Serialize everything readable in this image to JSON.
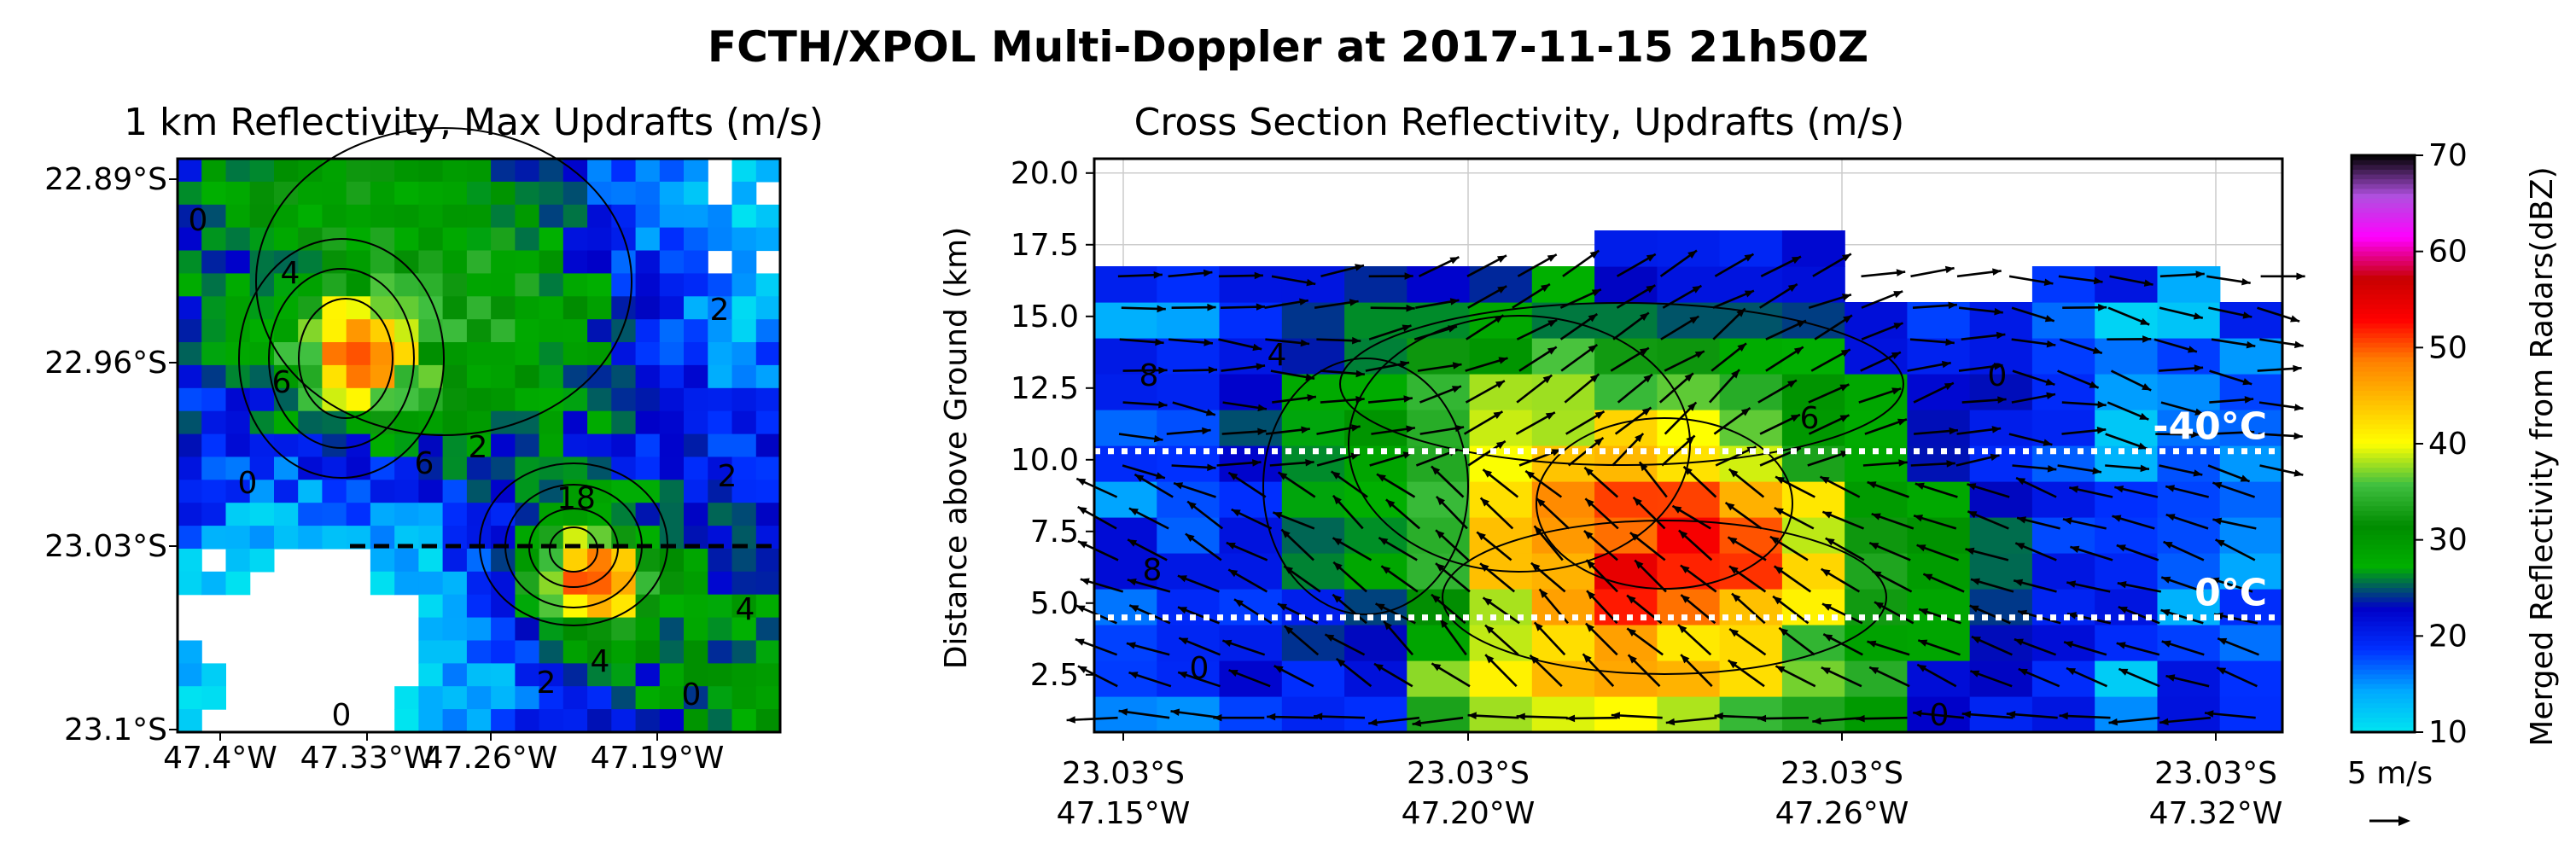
{
  "figure": {
    "title": "FCTH/XPOL Multi-Doppler at 2017-11-15 21h50Z"
  },
  "chart_data": [
    {
      "type": "heatmap",
      "title": "1 km Reflectivity, Max Updrafts (m/s)",
      "xlabel": "",
      "ylabel": "",
      "x_ticks": [
        "47.4°W",
        "47.33°W",
        "47.26°W",
        "47.19°W"
      ],
      "y_ticks": [
        "22.89°S",
        "22.96°S",
        "23.03°S",
        "23.1°S"
      ],
      "xlim": [
        -47.4,
        -47.15
      ],
      "ylim": [
        -23.1,
        -22.88
      ],
      "cross_section_lat": -23.03,
      "contour_labels": [
        "0",
        "4",
        "6",
        "0",
        "2",
        "2",
        "6",
        "2",
        "18",
        "4",
        "0",
        "4",
        "0",
        "2"
      ],
      "grid": true
    },
    {
      "type": "heatmap",
      "title": "Cross Section Reflectivity, Updrafts (m/s)",
      "xlabel": "",
      "ylabel": "Distance above Ground (km)",
      "y_ticks": [
        "2.5",
        "5.0",
        "7.5",
        "10.0",
        "12.5",
        "15.0",
        "17.5",
        "20.0"
      ],
      "x_ticks": [
        {
          "lat": "23.03°S",
          "lon": "47.15°W"
        },
        {
          "lat": "23.03°S",
          "lon": "47.20°W"
        },
        {
          "lat": "23.03°S",
          "lon": "47.26°W"
        },
        {
          "lat": "23.03°S",
          "lon": "47.32°W"
        }
      ],
      "ylim": [
        0.5,
        20.5
      ],
      "isotherms": [
        {
          "label": "-40°C",
          "height_km": 10.3
        },
        {
          "label": "0°C",
          "height_km": 4.5
        }
      ],
      "contour_labels": [
        "8",
        "8",
        "4",
        "6",
        "0",
        "0",
        "0"
      ],
      "quiver_key": "5 m/s",
      "grid": true
    },
    {
      "type": "colorbar",
      "label": "Merged Reflectivity from Radars(dBZ)",
      "ticks": [
        "10",
        "20",
        "30",
        "40",
        "50",
        "60",
        "70"
      ],
      "range": [
        10,
        70
      ],
      "colors": [
        "#00e5f0",
        "#00a8ff",
        "#0030ff",
        "#0000c8",
        "#00b000",
        "#008c00",
        "#40c040",
        "#ffff00",
        "#ffc000",
        "#ff8000",
        "#ff0000",
        "#c80000",
        "#ff00ff",
        "#b050e0",
        "#000000"
      ]
    }
  ]
}
